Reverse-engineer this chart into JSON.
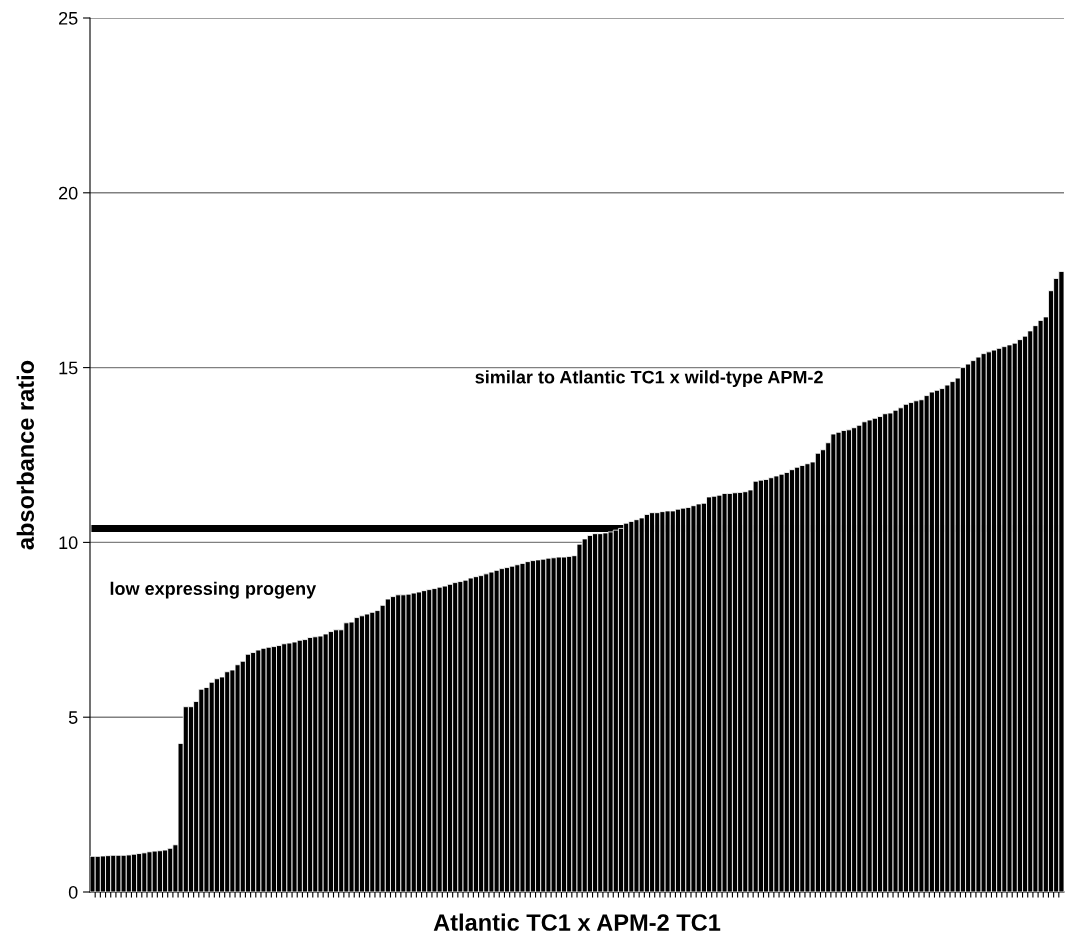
{
  "chart_data": {
    "type": "bar",
    "xlabel": "Atlantic TC1 x APM-2 TC1",
    "ylabel": "absorbance ratio",
    "color": "#000000",
    "categories": [
      null,
      null,
      null,
      null,
      null,
      null,
      null,
      null,
      null,
      null,
      null,
      null,
      null,
      null,
      null,
      null,
      null,
      null,
      null,
      null,
      null,
      null,
      null,
      null,
      null,
      null,
      null,
      null,
      null,
      null,
      null,
      null,
      null,
      null,
      null,
      null,
      null,
      null,
      null,
      null,
      null,
      null,
      null,
      null,
      null,
      null,
      null,
      null,
      null,
      null,
      null,
      null,
      null,
      null,
      null,
      null,
      null,
      null,
      null,
      null,
      null,
      null,
      null,
      null,
      null,
      null,
      null,
      null,
      null,
      null,
      null,
      null,
      null,
      null,
      null,
      null,
      null,
      null,
      null,
      null,
      null,
      null,
      null,
      null,
      null,
      null,
      null,
      null,
      null,
      null,
      null,
      null,
      null,
      null,
      null,
      null,
      null,
      null,
      null,
      null,
      null,
      null,
      null,
      null,
      null,
      null,
      null,
      null,
      null,
      null,
      null,
      null,
      null,
      null,
      null,
      null,
      null,
      null,
      null,
      null,
      null,
      null,
      null,
      null,
      null,
      null,
      null,
      null,
      null,
      null,
      null,
      null,
      null,
      null,
      null,
      null,
      null,
      null,
      null,
      null,
      null,
      null,
      null,
      null,
      null,
      null,
      null,
      null,
      null,
      null,
      null,
      null,
      null,
      null,
      null,
      null,
      null,
      null,
      null,
      null,
      null,
      null,
      null,
      null,
      null,
      null,
      null,
      null,
      null,
      null,
      null,
      null,
      null,
      null,
      null,
      null,
      null,
      null,
      null,
      null,
      null,
      null,
      null,
      null,
      null,
      null,
      null,
      null
    ],
    "values": [
      1.02,
      1.02,
      1.03,
      1.04,
      1.05,
      1.05,
      1.05,
      1.06,
      1.08,
      1.1,
      1.12,
      1.15,
      1.17,
      1.18,
      1.2,
      1.25,
      1.35,
      4.25,
      5.3,
      5.3,
      5.45,
      5.8,
      5.85,
      6.0,
      6.1,
      6.15,
      6.3,
      6.35,
      6.5,
      6.6,
      6.8,
      6.85,
      6.92,
      6.97,
      7.0,
      7.02,
      7.05,
      7.1,
      7.12,
      7.15,
      7.2,
      7.22,
      7.28,
      7.3,
      7.32,
      7.38,
      7.45,
      7.5,
      7.5,
      7.7,
      7.72,
      7.85,
      7.9,
      7.95,
      8.0,
      8.05,
      8.2,
      8.38,
      8.45,
      8.5,
      8.5,
      8.52,
      8.55,
      8.58,
      8.62,
      8.65,
      8.68,
      8.72,
      8.75,
      8.8,
      8.85,
      8.88,
      8.92,
      8.98,
      9.02,
      9.05,
      9.1,
      9.15,
      9.2,
      9.25,
      9.28,
      9.32,
      9.36,
      9.4,
      9.45,
      9.48,
      9.5,
      9.52,
      9.55,
      9.56,
      9.58,
      9.58,
      9.6,
      9.62,
      9.95,
      10.1,
      10.2,
      10.25,
      10.25,
      10.27,
      10.3,
      10.35,
      10.4,
      10.55,
      10.6,
      10.65,
      10.7,
      10.8,
      10.85,
      10.85,
      10.88,
      10.9,
      10.9,
      10.95,
      10.98,
      11.0,
      11.05,
      11.1,
      11.12,
      11.3,
      11.32,
      11.35,
      11.4,
      11.4,
      11.42,
      11.43,
      11.45,
      11.5,
      11.75,
      11.78,
      11.8,
      11.85,
      11.9,
      11.95,
      12.0,
      12.08,
      12.15,
      12.2,
      12.25,
      12.3,
      12.55,
      12.65,
      12.85,
      13.1,
      13.15,
      13.2,
      13.22,
      13.28,
      13.35,
      13.45,
      13.5,
      13.55,
      13.6,
      13.68,
      13.7,
      13.78,
      13.85,
      13.95,
      14.0,
      14.05,
      14.08,
      14.2,
      14.3,
      14.35,
      14.4,
      14.5,
      14.6,
      14.7,
      15.0,
      15.1,
      15.2,
      15.3,
      15.4,
      15.45,
      15.5,
      15.55,
      15.6,
      15.65,
      15.7,
      15.8,
      15.9,
      16.05,
      16.2,
      16.35,
      16.45,
      17.2,
      17.55,
      17.75
    ],
    "ylim": [
      0,
      25
    ],
    "yticks": [
      0,
      5,
      10,
      15,
      20,
      25
    ],
    "grid": "y",
    "ref_lines": [
      {
        "axis": "y",
        "value": 10.4,
        "color": "#000000"
      }
    ],
    "annotations": [
      "similar to Atlantic TC1 x wild-type APM-2",
      "low expressing progeny"
    ]
  }
}
